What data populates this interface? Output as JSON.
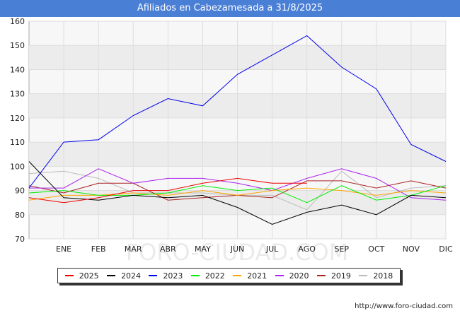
{
  "title": "Afiliados en Cabezamesada a 31/8/2025",
  "source": "http://www.foro-ciudad.com",
  "watermark": "FORO-CIUDAD.COM",
  "chart_data": {
    "type": "line",
    "title": "Afiliados en Cabezamesada a 31/8/2025",
    "xlabel": "",
    "ylabel": "",
    "x_tick_labels": [
      "",
      "ENE",
      "FEB",
      "MAR",
      "ABR",
      "MAY",
      "JUN",
      "JUL",
      "AGO",
      "SEP",
      "OCT",
      "NOV",
      "DIC"
    ],
    "ylim": [
      70,
      160
    ],
    "yticks": [
      70,
      80,
      90,
      100,
      110,
      120,
      130,
      140,
      150,
      160
    ],
    "grid": true,
    "legend_position": "bottom",
    "series": [
      {
        "name": "2025",
        "color": "#ee0000",
        "values": [
          87,
          85,
          87,
          90,
          90,
          93,
          95,
          93,
          93
        ]
      },
      {
        "name": "2024",
        "color": "#000000",
        "values": [
          102,
          87,
          86,
          88,
          87,
          88,
          83,
          76,
          81,
          84,
          80,
          88,
          87
        ]
      },
      {
        "name": "2023",
        "color": "#0000ee",
        "values": [
          91,
          110,
          111,
          121,
          128,
          125,
          138,
          146,
          154,
          141,
          132,
          109,
          102
        ]
      },
      {
        "name": "2022",
        "color": "#00ee00",
        "values": [
          89,
          90,
          88,
          88,
          89,
          92,
          90,
          91,
          85,
          92,
          86,
          88,
          92
        ]
      },
      {
        "name": "2021",
        "color": "#ffa500",
        "values": [
          86,
          88,
          88,
          89,
          88,
          90,
          88,
          90,
          91,
          90,
          88,
          90,
          89
        ]
      },
      {
        "name": "2020",
        "color": "#aa22ee",
        "values": [
          91,
          91,
          99,
          93,
          95,
          95,
          93,
          90,
          95,
          99,
          95,
          87,
          86
        ]
      },
      {
        "name": "2019",
        "color": "#aa2222",
        "values": [
          92,
          89,
          93,
          93,
          86,
          87,
          88,
          87,
          94,
          94,
          91,
          94,
          91
        ]
      },
      {
        "name": "2018",
        "color": "#bbbbbb",
        "values": [
          97,
          98,
          95,
          89,
          89,
          89,
          88,
          88,
          82,
          98,
          87,
          91,
          92
        ]
      }
    ]
  }
}
